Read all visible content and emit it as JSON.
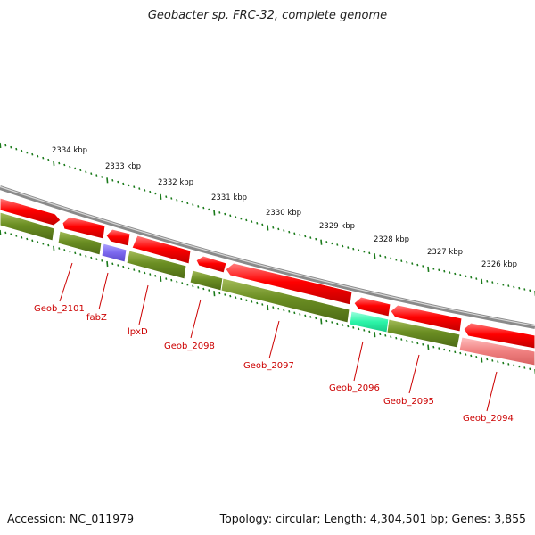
{
  "title": "Geobacter sp. FRC-32, complete genome",
  "footer": {
    "accession": "Accession: NC_011979",
    "topology": "Topology: circular; Length: 4,304,501 bp; Genes: 3,855"
  },
  "scale": {
    "unit": "kbp",
    "ticks": [
      {
        "kbp": 2334,
        "label": "2334 kbp"
      },
      {
        "kbp": 2333,
        "label": "2333 kbp"
      },
      {
        "kbp": 2332,
        "label": "2332 kbp"
      },
      {
        "kbp": 2331,
        "label": "2331 kbp"
      },
      {
        "kbp": 2330,
        "label": "2330 kbp"
      },
      {
        "kbp": 2329,
        "label": "2329 kbp"
      },
      {
        "kbp": 2328,
        "label": "2328 kbp"
      },
      {
        "kbp": 2327,
        "label": "2327 kbp"
      },
      {
        "kbp": 2326,
        "label": "2326 kbp"
      }
    ]
  },
  "genes": [
    {
      "name": "Geob_2101"
    },
    {
      "name": "fabZ"
    },
    {
      "name": "lpxD"
    },
    {
      "name": "Geob_2098"
    },
    {
      "name": "Geob_2097"
    },
    {
      "name": "Geob_2096"
    },
    {
      "name": "Geob_2095"
    },
    {
      "name": "Geob_2094"
    }
  ],
  "colors": {
    "backbone": "#8a8a8a",
    "strand_outer": "#ff0000",
    "strand_cds": "#6b8e23",
    "gene_fabZ": "#7b68ee",
    "gene_2096": "#3cffb0",
    "gene_2094": "#f08080",
    "tick": "#1a7a1a",
    "label": "#cc0000"
  }
}
